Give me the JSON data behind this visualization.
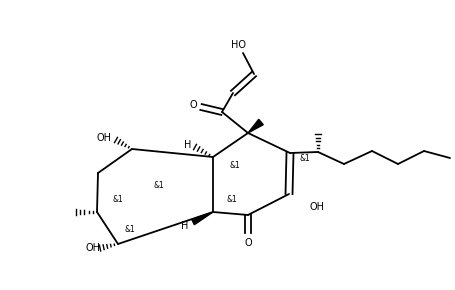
{
  "bg_color": "#ffffff",
  "line_color": "#000000",
  "line_width": 1.3,
  "font_size": 7.0,
  "figsize": [
    4.56,
    2.9
  ],
  "dpi": 100,
  "xlim": [
    0,
    456
  ],
  "ylim": [
    0,
    290
  ]
}
